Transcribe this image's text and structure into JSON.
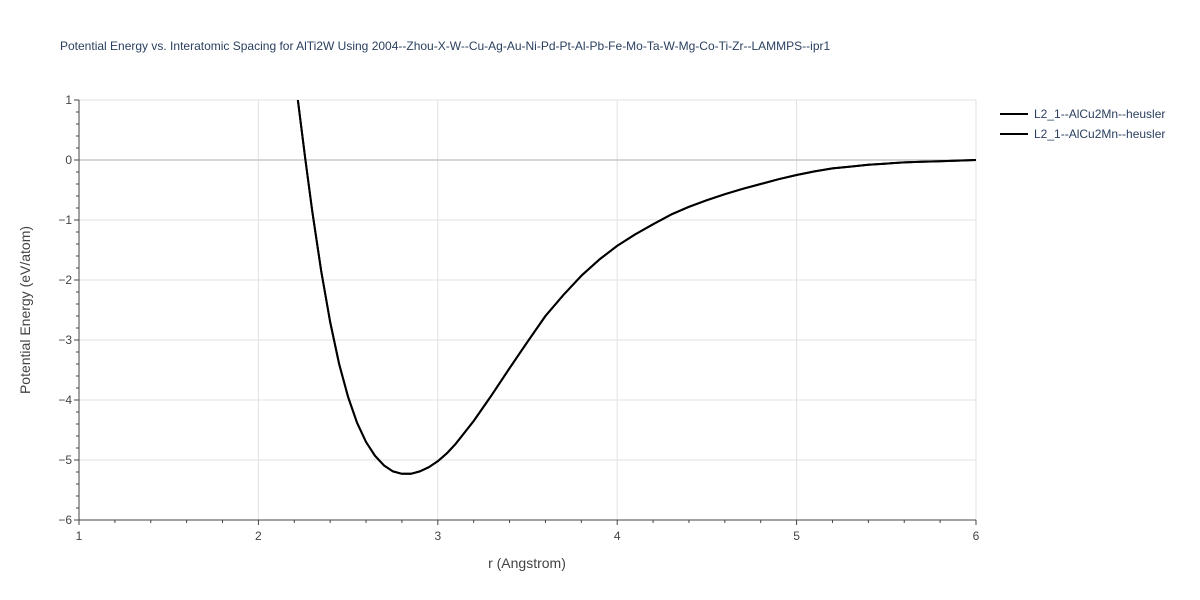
{
  "chart_data": {
    "type": "line",
    "title": "Potential Energy vs. Interatomic Spacing for AlTi2W Using 2004--Zhou-X-W--Cu-Ag-Au-Ni-Pd-Pt-Al-Pb-Fe-Mo-Ta-W-Mg-Co-Ti-Zr--LAMMPS--ipr1",
    "xlabel": "r (Angstrom)",
    "ylabel": "Potential Energy (eV/atom)",
    "xlim": [
      1,
      6
    ],
    "ylim": [
      -6,
      1
    ],
    "xticks": [
      "1",
      "2",
      "3",
      "4",
      "5",
      "6"
    ],
    "yticks": [
      "1",
      "0",
      "−1",
      "−2",
      "−3",
      "−4",
      "−5",
      "−6"
    ],
    "grid": true,
    "legend_position": "top-right",
    "line_color": "#000000",
    "series": [
      {
        "name": "L2_1--AlCu2Mn--heusler",
        "x": [
          2.22,
          2.26,
          2.3,
          2.35,
          2.4,
          2.45,
          2.5,
          2.55,
          2.6,
          2.65,
          2.7,
          2.75,
          2.8,
          2.85,
          2.9,
          2.95,
          3.0,
          3.05,
          3.1,
          3.2,
          3.3,
          3.4,
          3.5,
          3.6,
          3.7,
          3.8,
          3.9,
          4.0,
          4.1,
          4.2,
          4.3,
          4.4,
          4.5,
          4.6,
          4.7,
          4.8,
          4.9,
          5.0,
          5.1,
          5.2,
          5.3,
          5.4,
          5.5,
          5.6,
          5.7,
          5.8,
          5.9,
          6.0
        ],
        "y": [
          1.0,
          0.05,
          -0.85,
          -1.85,
          -2.7,
          -3.4,
          -3.95,
          -4.38,
          -4.7,
          -4.93,
          -5.09,
          -5.19,
          -5.23,
          -5.23,
          -5.19,
          -5.12,
          -5.02,
          -4.89,
          -4.73,
          -4.35,
          -3.92,
          -3.47,
          -3.03,
          -2.6,
          -2.25,
          -1.93,
          -1.66,
          -1.43,
          -1.24,
          -1.07,
          -0.91,
          -0.78,
          -0.67,
          -0.57,
          -0.48,
          -0.4,
          -0.32,
          -0.25,
          -0.19,
          -0.14,
          -0.11,
          -0.08,
          -0.06,
          -0.04,
          -0.03,
          -0.02,
          -0.01,
          0.0
        ]
      },
      {
        "name": "L2_1--AlCu2Mn--heusler",
        "x": [
          2.22,
          2.26,
          2.3,
          2.35,
          2.4,
          2.45,
          2.5,
          2.55,
          2.6,
          2.65,
          2.7,
          2.75,
          2.8,
          2.85,
          2.9,
          2.95,
          3.0,
          3.05,
          3.1,
          3.2,
          3.3,
          3.4,
          3.5,
          3.6,
          3.7,
          3.8,
          3.9,
          4.0,
          4.1,
          4.2,
          4.3,
          4.4,
          4.5,
          4.6,
          4.7,
          4.8,
          4.9,
          5.0,
          5.1,
          5.2,
          5.3,
          5.4,
          5.5,
          5.6,
          5.7,
          5.8,
          5.9,
          6.0
        ],
        "y": [
          1.0,
          0.05,
          -0.85,
          -1.85,
          -2.7,
          -3.4,
          -3.95,
          -4.38,
          -4.7,
          -4.93,
          -5.09,
          -5.19,
          -5.23,
          -5.23,
          -5.19,
          -5.12,
          -5.02,
          -4.89,
          -4.73,
          -4.35,
          -3.92,
          -3.47,
          -3.03,
          -2.6,
          -2.25,
          -1.93,
          -1.66,
          -1.43,
          -1.24,
          -1.07,
          -0.91,
          -0.78,
          -0.67,
          -0.57,
          -0.48,
          -0.4,
          -0.32,
          -0.25,
          -0.19,
          -0.14,
          -0.11,
          -0.08,
          -0.06,
          -0.04,
          -0.03,
          -0.02,
          -0.01,
          0.0
        ]
      }
    ]
  }
}
